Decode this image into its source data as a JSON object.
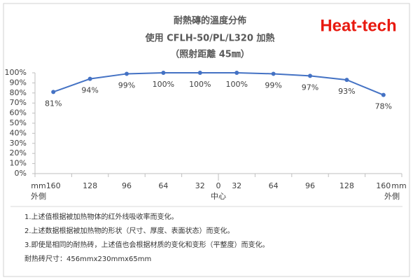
{
  "logo": "Heat-tech",
  "notes": [
    "1.上述值根据被加热物体的红外线吸收率而变化。",
    "2.上述数据根据被加热物的形状（尺寸、厚度、表面状态）而变化。",
    "3.即使是相同的耐热砖，上述值也会根据材质的变化和变形（平整度）而变化。",
    "耐热砖尺寸：456mmx230mmx65mm"
  ],
  "chart_data": {
    "type": "line",
    "title": "耐熱磚的溫度分佈",
    "subtitle": "使用 CFLH-50/PL/L320 加熱",
    "subtitle2": "（照射距離 45㎜）",
    "x_unit": "mm",
    "x_side_label": "外側",
    "x_center": "0",
    "x_center_label": "中心",
    "categories": [
      "160",
      "128",
      "96",
      "64",
      "32",
      "32",
      "64",
      "96",
      "128",
      "160"
    ],
    "series": [
      {
        "name": "溫度分佈",
        "color": "#4472c4",
        "values": [
          81,
          94,
          99,
          100,
          100,
          100,
          99,
          97,
          93,
          78
        ],
        "value_labels": [
          "81%",
          "94%",
          "99%",
          "100%",
          "100%",
          "100%",
          "99%",
          "97%",
          "93%",
          "78%"
        ]
      }
    ],
    "ylim": [
      0,
      100
    ],
    "yticks": [
      {
        "value": 0,
        "label": "0%"
      },
      {
        "value": 10,
        "label": "10%"
      },
      {
        "value": 20,
        "label": "20%"
      },
      {
        "value": 30,
        "label": "30%"
      },
      {
        "value": 40,
        "label": "40%"
      },
      {
        "value": 50,
        "label": "50%"
      },
      {
        "value": 60,
        "label": "60%"
      },
      {
        "value": 70,
        "label": "70%"
      },
      {
        "value": 80,
        "label": "80%"
      },
      {
        "value": 90,
        "label": "90%"
      },
      {
        "value": 100,
        "label": "100%"
      }
    ],
    "grid": false
  }
}
